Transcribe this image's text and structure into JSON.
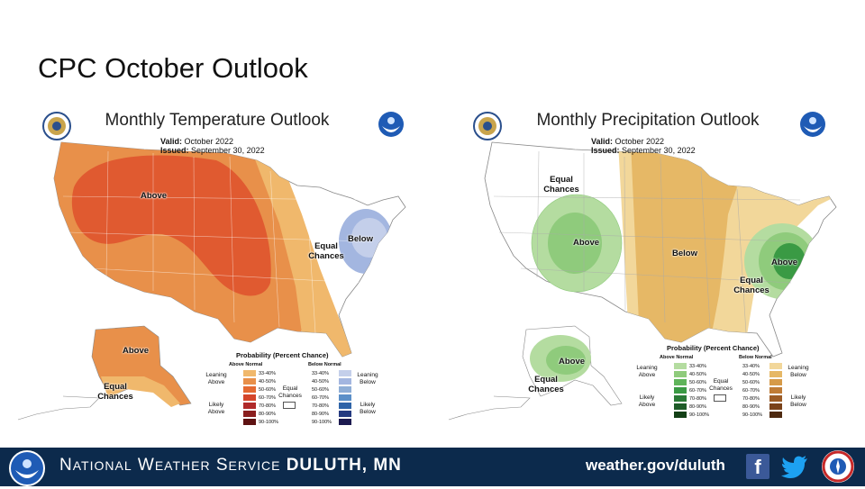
{
  "slide_title": "CPC October Outlook",
  "temperature": {
    "title": "Monthly Temperature Outlook",
    "valid_label": "Valid:",
    "valid_value": "October 2022",
    "issued_label": "Issued:",
    "issued_value": "September 30, 2022",
    "regions": {
      "above": "Above",
      "equal_chances": "Equal Chances",
      "below": "Below",
      "alaska_above": "Above",
      "alaska_equal": "Equal Chances"
    },
    "legend": {
      "title": "Probability (Percent Chance)",
      "left_header": "Above Normal",
      "right_header": "Below Normal",
      "leaning_left": "Leaning Above",
      "likely_left": "Likely Above",
      "leaning_right": "Leaning Below",
      "likely_right": "Likely Below",
      "equal_chances": "Equal Chances",
      "ranges": [
        "33-40%",
        "40-50%",
        "50-60%",
        "60-70%",
        "70-80%",
        "80-90%",
        "90-100%"
      ],
      "left_colors": [
        "#f0b86c",
        "#e8904a",
        "#e46a32",
        "#d4452a",
        "#b02a2a",
        "#8a1e1e",
        "#5e1212"
      ],
      "right_colors": [
        "#c4cfea",
        "#a3b6e0",
        "#8faed6",
        "#5b8fc8",
        "#2f64a8",
        "#243a80",
        "#1c1a50"
      ]
    }
  },
  "precipitation": {
    "title": "Monthly Precipitation Outlook",
    "valid_label": "Valid:",
    "valid_value": "October 2022",
    "issued_label": "Issued:",
    "issued_value": "September 30, 2022",
    "regions": {
      "equal_chances_west": "Equal Chances",
      "above_west": "Above",
      "below": "Below",
      "above_east": "Above",
      "equal_chances_east": "Equal Chances",
      "alaska_above": "Above",
      "alaska_equal": "Equal Chances"
    },
    "legend": {
      "title": "Probability (Percent Chance)",
      "left_header": "Above Normal",
      "right_header": "Below Normal",
      "leaning_left": "Leaning Above",
      "likely_left": "Likely Above",
      "leaning_right": "Leaning Below",
      "likely_right": "Likely Below",
      "equal_chances": "Equal Chances",
      "ranges": [
        "33-40%",
        "40-50%",
        "50-60%",
        "60-70%",
        "70-80%",
        "80-90%",
        "90-100%"
      ],
      "left_colors": [
        "#b4dca0",
        "#8fcb7c",
        "#5fb45a",
        "#3a9a44",
        "#2a7a36",
        "#1e5c28",
        "#134016"
      ],
      "right_colors": [
        "#f2d79a",
        "#e6b866",
        "#d69a48",
        "#c07c36",
        "#9c5c26",
        "#7a421a",
        "#4e2a10"
      ]
    }
  },
  "footer": {
    "name_n": "N",
    "name_ational": "ATIONAL",
    "name_w": "W",
    "name_eather": "EATHER",
    "name_s": "S",
    "name_ervice": "ERVICE",
    "office": "DULUTH, MN",
    "url": "weather.gov/duluth"
  }
}
